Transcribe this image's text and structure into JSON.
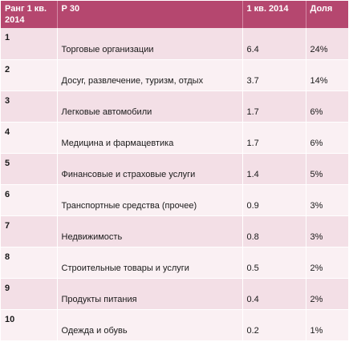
{
  "table": {
    "headers": {
      "rank": "Ранг 1 кв. 2014",
      "name": "Р 30",
      "value": "1 кв. 2014",
      "share": "Доля"
    },
    "colors": {
      "header_bg": "#b5476f",
      "row_odd": "#f3dfe6",
      "row_even": "#faf0f3"
    },
    "rows": [
      {
        "rank": "1",
        "name": "Торговые организации",
        "value": "6.4",
        "share": "24%"
      },
      {
        "rank": "2",
        "name": "Досуг,  развлечение, туризм, отдых",
        "value": "3.7",
        "share": "14%"
      },
      {
        "rank": "3",
        "name": "Легковые автомобили",
        "value": "1.7",
        "share": "6%"
      },
      {
        "rank": "4",
        "name": "Медицина и фармацевтика",
        "value": "1.7",
        "share": "6%"
      },
      {
        "rank": "5",
        "name": "Финансовые и страховые услуги",
        "value": "1.4",
        "share": "5%"
      },
      {
        "rank": "6",
        "name": "Транспортные средства (прочее)",
        "value": "0.9",
        "share": "3%"
      },
      {
        "rank": "7",
        "name": "Недвижимость",
        "value": "0.8",
        "share": "3%"
      },
      {
        "rank": "8",
        "name": "Строительные товары и услуги",
        "value": "0.5",
        "share": "2%"
      },
      {
        "rank": "9",
        "name": "Продукты питания",
        "value": "0.4",
        "share": "2%"
      },
      {
        "rank": "10",
        "name": "Одежда и обувь",
        "value": "0.2",
        "share": "1%"
      }
    ]
  }
}
